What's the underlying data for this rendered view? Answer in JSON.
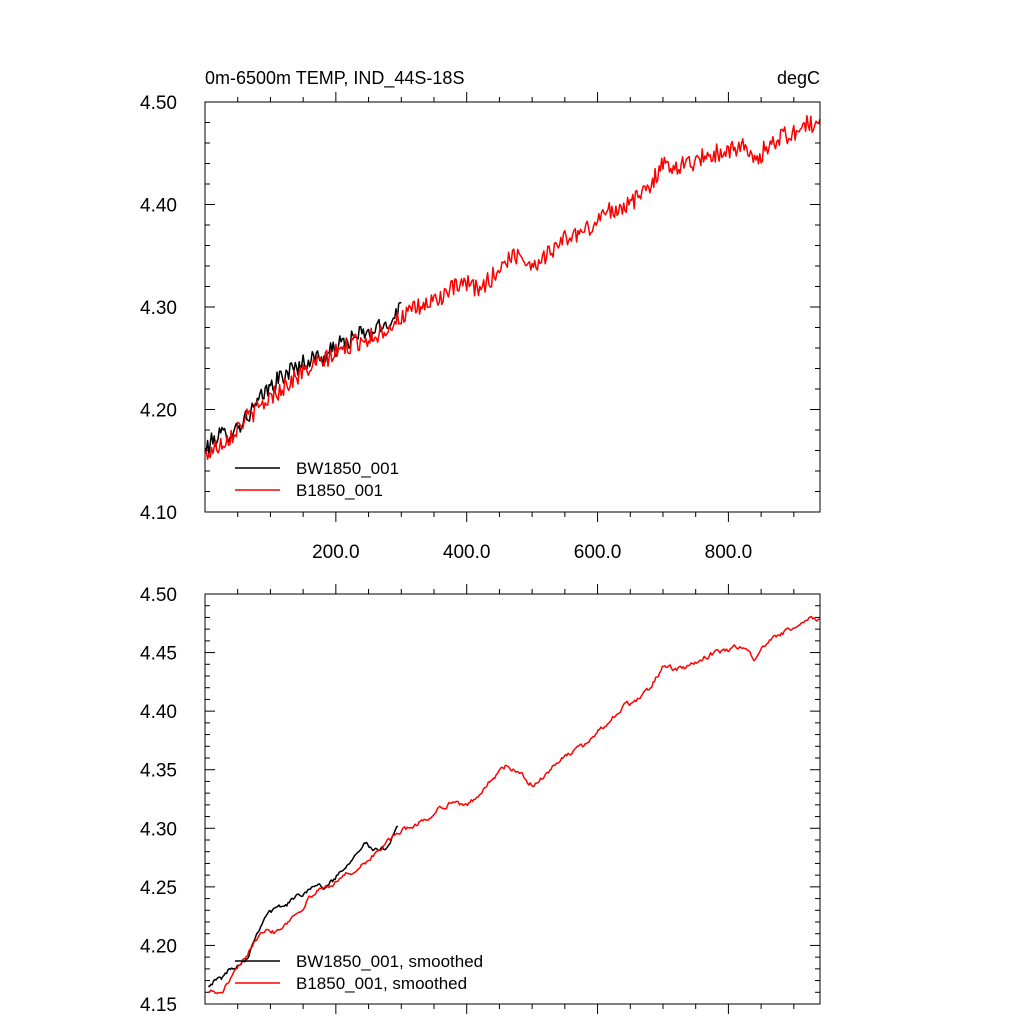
{
  "chart_data": [
    {
      "type": "line",
      "title": "0m-6500m TEMP, IND_44S-18S",
      "units": "degC",
      "xlabel": "",
      "ylabel": "",
      "xlim": [
        0,
        940
      ],
      "ylim": [
        4.1,
        4.5
      ],
      "x_ticks": [
        200,
        400,
        600,
        800
      ],
      "x_tick_labels": [
        "200.0",
        "400.0",
        "600.0",
        "800.0"
      ],
      "y_ticks": [
        4.1,
        4.2,
        4.3,
        4.4,
        4.5
      ],
      "y_tick_labels": [
        "4.10",
        "4.20",
        "4.30",
        "4.40",
        "4.50"
      ],
      "legend_position": "bottom-left",
      "series": [
        {
          "name": "BW1850_001",
          "color": "#000000",
          "x": [
            0,
            10,
            20,
            30,
            40,
            50,
            60,
            70,
            80,
            90,
            100,
            110,
            120,
            130,
            140,
            150,
            160,
            170,
            180,
            190,
            200,
            210,
            220,
            230,
            240,
            250,
            260,
            270,
            280,
            290,
            300
          ],
          "y": [
            4.16,
            4.168,
            4.175,
            4.175,
            4.178,
            4.183,
            4.19,
            4.198,
            4.205,
            4.215,
            4.222,
            4.228,
            4.233,
            4.238,
            4.242,
            4.245,
            4.248,
            4.252,
            4.25,
            4.255,
            4.26,
            4.265,
            4.267,
            4.27,
            4.275,
            4.272,
            4.278,
            4.28,
            4.285,
            4.292,
            4.303
          ]
        },
        {
          "name": "B1850_001",
          "color": "#ff0000",
          "x": [
            0,
            20,
            40,
            60,
            80,
            100,
            120,
            140,
            160,
            180,
            200,
            220,
            240,
            260,
            280,
            300,
            320,
            340,
            360,
            380,
            400,
            420,
            440,
            460,
            480,
            500,
            520,
            540,
            560,
            580,
            600,
            620,
            640,
            660,
            680,
            700,
            720,
            740,
            760,
            780,
            800,
            820,
            840,
            860,
            880,
            900,
            920,
            940
          ],
          "y": [
            4.155,
            4.165,
            4.175,
            4.19,
            4.2,
            4.212,
            4.222,
            4.232,
            4.24,
            4.247,
            4.255,
            4.262,
            4.268,
            4.272,
            4.28,
            4.29,
            4.297,
            4.303,
            4.31,
            4.318,
            4.322,
            4.317,
            4.33,
            4.345,
            4.352,
            4.34,
            4.35,
            4.362,
            4.37,
            4.373,
            4.385,
            4.395,
            4.398,
            4.405,
            4.42,
            4.438,
            4.438,
            4.44,
            4.446,
            4.45,
            4.453,
            4.458,
            4.44,
            4.458,
            4.466,
            4.47,
            4.478,
            4.478
          ]
        }
      ]
    },
    {
      "type": "line",
      "title": "",
      "xlabel": "",
      "ylabel": "",
      "xlim": [
        0,
        940
      ],
      "ylim": [
        4.15,
        4.5
      ],
      "x_ticks": [
        200,
        400,
        600,
        800
      ],
      "y_ticks": [
        4.15,
        4.2,
        4.25,
        4.3,
        4.35,
        4.4,
        4.45,
        4.5
      ],
      "y_tick_labels": [
        "4.15",
        "4.20",
        "4.25",
        "4.30",
        "4.35",
        "4.40",
        "4.45",
        "4.50"
      ],
      "legend_position": "bottom-left",
      "series": [
        {
          "name": "BW1850_001, smoothed",
          "color": "#000000",
          "x": [
            5,
            15,
            25,
            35,
            45,
            55,
            65,
            75,
            85,
            95,
            105,
            115,
            125,
            135,
            145,
            155,
            165,
            175,
            185,
            195,
            205,
            215,
            225,
            235,
            245,
            255,
            265,
            275,
            285,
            295
          ],
          "y": [
            4.167,
            4.17,
            4.172,
            4.178,
            4.182,
            4.186,
            4.19,
            4.205,
            4.218,
            4.228,
            4.23,
            4.233,
            4.235,
            4.24,
            4.243,
            4.247,
            4.252,
            4.25,
            4.25,
            4.255,
            4.262,
            4.268,
            4.275,
            4.283,
            4.288,
            4.282,
            4.28,
            4.282,
            4.292,
            4.303
          ]
        },
        {
          "name": "B1850_001, smoothed",
          "color": "#ff0000",
          "x": [
            5,
            15,
            25,
            35,
            45,
            55,
            65,
            75,
            85,
            95,
            105,
            115,
            125,
            135,
            145,
            155,
            165,
            175,
            185,
            195,
            205,
            215,
            225,
            235,
            245,
            255,
            265,
            275,
            285,
            295,
            320,
            340,
            360,
            380,
            400,
            420,
            440,
            460,
            480,
            500,
            520,
            540,
            560,
            580,
            600,
            620,
            640,
            660,
            680,
            700,
            720,
            740,
            760,
            780,
            800,
            820,
            840,
            860,
            880,
            900,
            920,
            940
          ],
          "y": [
            4.162,
            4.16,
            4.158,
            4.168,
            4.176,
            4.183,
            4.193,
            4.205,
            4.212,
            4.215,
            4.212,
            4.215,
            4.22,
            4.225,
            4.23,
            4.237,
            4.243,
            4.248,
            4.25,
            4.253,
            4.257,
            4.26,
            4.263,
            4.266,
            4.27,
            4.276,
            4.281,
            4.286,
            4.291,
            4.296,
            4.303,
            4.308,
            4.318,
            4.323,
            4.318,
            4.33,
            4.343,
            4.353,
            4.347,
            4.337,
            4.345,
            4.357,
            4.365,
            4.37,
            4.383,
            4.393,
            4.404,
            4.409,
            4.42,
            4.438,
            4.435,
            4.438,
            4.445,
            4.45,
            4.452,
            4.456,
            4.445,
            4.458,
            4.466,
            4.47,
            4.478,
            4.479
          ]
        }
      ]
    }
  ]
}
